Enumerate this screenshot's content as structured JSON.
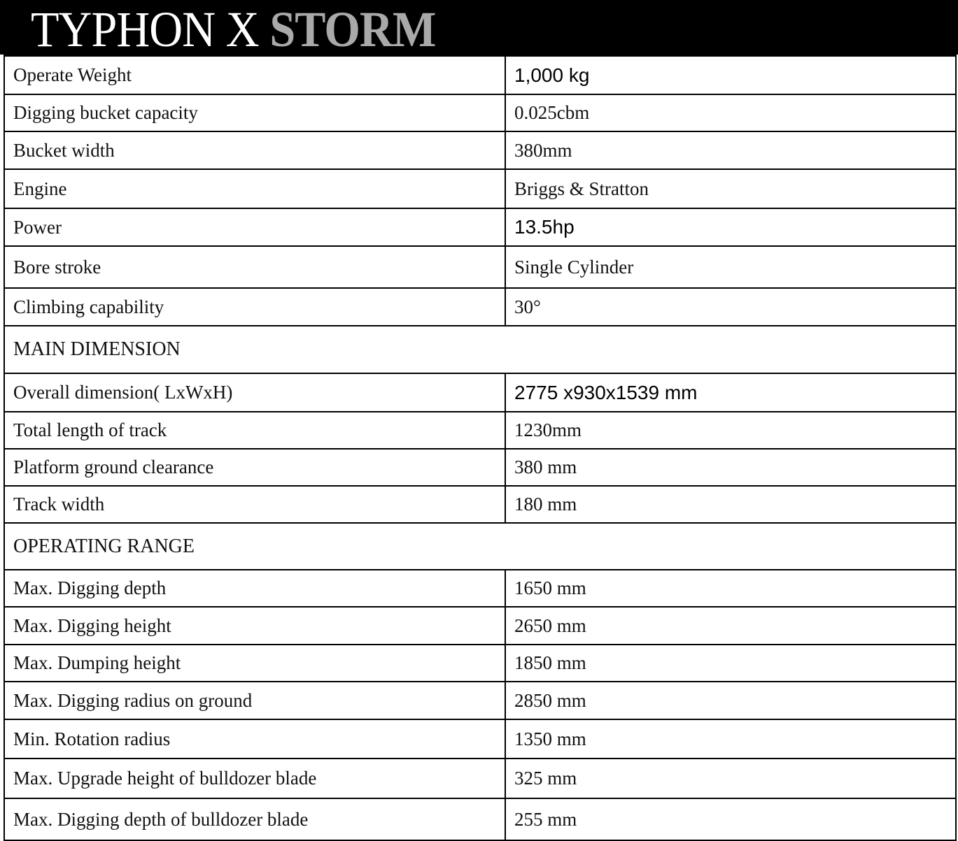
{
  "header": {
    "title_part1": "TYPHON X",
    "title_part2": "STORM"
  },
  "rows": [
    {
      "label": "Operate Weight",
      "value": "1,000 kg",
      "sans": true
    },
    {
      "label": "Digging bucket capacity",
      "value": "0.025cbm"
    },
    {
      "label": "Bucket width",
      "value": "380mm"
    },
    {
      "label": "Engine",
      "value": "Briggs & Stratton"
    },
    {
      "label": "Power",
      "value": "13.5hp",
      "sans": true
    },
    {
      "label": "Bore stroke",
      "value": "Single Cylinder"
    },
    {
      "label": "Climbing capability",
      "value": "30°"
    },
    {
      "section": "MAIN  DIMENSION"
    },
    {
      "label": "Overall dimension( LxWxH)",
      "value": "2775 x930x1539 mm",
      "sans": true
    },
    {
      "label": "Total length of track",
      "value": "1230mm"
    },
    {
      "label": "Platform ground clearance",
      "value": "380 mm"
    },
    {
      "label": "Track width",
      "value": "180 mm"
    },
    {
      "section": "OPERATING RANGE"
    },
    {
      "label": "Max. Digging depth",
      "value": "1650 mm"
    },
    {
      "label": "Max. Digging height",
      "value": "2650 mm"
    },
    {
      "label": "Max. Dumping height",
      "value": "1850 mm"
    },
    {
      "label": "Max. Digging radius on ground",
      "value": "2850 mm"
    },
    {
      "label": "Min. Rotation radius",
      "value": "1350 mm"
    },
    {
      "label": "Max. Upgrade height of bulldozer blade",
      "value": "325 mm"
    },
    {
      "label": "Max. Digging depth of bulldozer blade",
      "value": "255 mm"
    }
  ]
}
